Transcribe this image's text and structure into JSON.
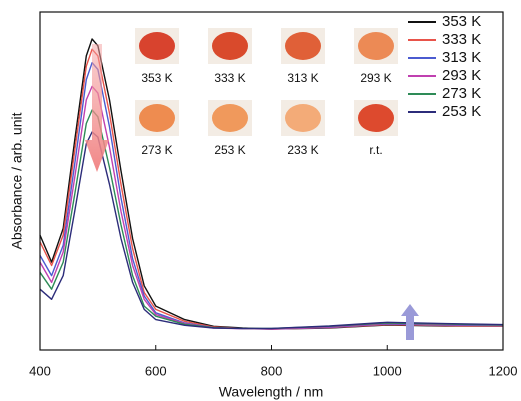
{
  "chart_data": {
    "type": "line",
    "x_label": "Wavelength / nm",
    "y_label": "Absorbance / arb. unit",
    "xlim": [
      400,
      1200
    ],
    "xticks": [
      400,
      600,
      800,
      1000,
      1200
    ],
    "ylim": [
      0,
      1
    ],
    "legend": "top-right",
    "x": [
      400,
      420,
      440,
      460,
      480,
      490,
      500,
      520,
      540,
      560,
      580,
      600,
      650,
      700,
      750,
      800,
      900,
      1000,
      1100,
      1200
    ],
    "series": [
      {
        "name": "353 K",
        "color": "#111111",
        "values": [
          0.34,
          0.26,
          0.36,
          0.62,
          0.87,
          0.92,
          0.9,
          0.74,
          0.53,
          0.33,
          0.19,
          0.13,
          0.09,
          0.07,
          0.065,
          0.062,
          0.065,
          0.074,
          0.071,
          0.071
        ]
      },
      {
        "name": "333 K",
        "color": "#e8534a",
        "values": [
          0.32,
          0.25,
          0.34,
          0.59,
          0.84,
          0.89,
          0.87,
          0.7,
          0.49,
          0.3,
          0.17,
          0.12,
          0.085,
          0.068,
          0.064,
          0.062,
          0.066,
          0.075,
          0.072,
          0.07
        ]
      },
      {
        "name": "313 K",
        "color": "#4b5bd0",
        "values": [
          0.28,
          0.22,
          0.31,
          0.55,
          0.8,
          0.85,
          0.83,
          0.66,
          0.45,
          0.27,
          0.16,
          0.11,
          0.08,
          0.066,
          0.063,
          0.062,
          0.067,
          0.077,
          0.074,
          0.072
        ]
      },
      {
        "name": "293 K",
        "color": "#c040b0",
        "values": [
          0.26,
          0.2,
          0.29,
          0.51,
          0.74,
          0.78,
          0.76,
          0.6,
          0.41,
          0.25,
          0.15,
          0.105,
          0.078,
          0.065,
          0.063,
          0.062,
          0.068,
          0.078,
          0.075,
          0.073
        ]
      },
      {
        "name": "273 K",
        "color": "#2e8b57",
        "values": [
          0.23,
          0.18,
          0.26,
          0.46,
          0.67,
          0.71,
          0.69,
          0.54,
          0.37,
          0.22,
          0.13,
          0.1,
          0.076,
          0.066,
          0.064,
          0.064,
          0.07,
          0.08,
          0.077,
          0.074
        ]
      },
      {
        "name": "253 K",
        "color": "#2c2c7a",
        "values": [
          0.18,
          0.15,
          0.22,
          0.41,
          0.61,
          0.645,
          0.63,
          0.49,
          0.33,
          0.2,
          0.12,
          0.09,
          0.073,
          0.065,
          0.064,
          0.064,
          0.071,
          0.082,
          0.078,
          0.075
        ]
      }
    ],
    "insets": [
      {
        "label": "353 K",
        "color": "#d8432e"
      },
      {
        "label": "333 K",
        "color": "#d94a2c"
      },
      {
        "label": "313 K",
        "color": "#e06038"
      },
      {
        "label": "293 K",
        "color": "#ec8a55"
      },
      {
        "label": "273 K",
        "color": "#ee8c50"
      },
      {
        "label": "253 K",
        "color": "#f0995c"
      },
      {
        "label": "233 K",
        "color": "#f3ab78"
      },
      {
        "label": "r.t.",
        "color": "#dd4a2e"
      }
    ]
  }
}
